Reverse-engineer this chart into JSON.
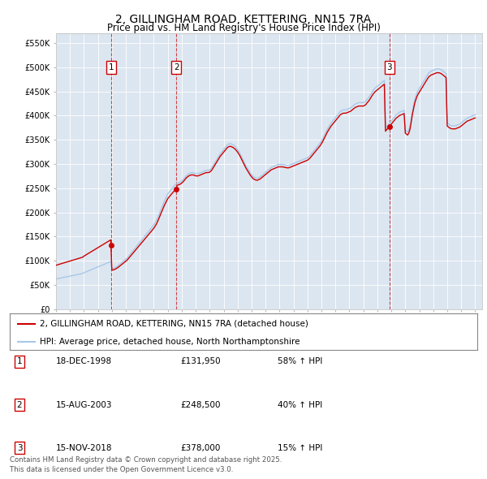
{
  "title": "2, GILLINGHAM ROAD, KETTERING, NN15 7RA",
  "subtitle": "Price paid vs. HM Land Registry's House Price Index (HPI)",
  "title_fontsize": 10,
  "subtitle_fontsize": 8.5,
  "background_color": "#ffffff",
  "plot_bg_color": "#dce6f0",
  "grid_color": "#ffffff",
  "ylim": [
    0,
    570000
  ],
  "yticks": [
    0,
    50000,
    100000,
    150000,
    200000,
    250000,
    300000,
    350000,
    400000,
    450000,
    500000,
    550000
  ],
  "ytick_labels": [
    "£0",
    "£50K",
    "£100K",
    "£150K",
    "£200K",
    "£250K",
    "£300K",
    "£350K",
    "£400K",
    "£450K",
    "£500K",
    "£550K"
  ],
  "xlim_start": 1995.0,
  "xlim_end": 2025.5,
  "sale_color": "#cc0000",
  "hpi_color": "#a8c8e8",
  "vline_color": "#cc0000",
  "sale_dates_year": [
    1998.96,
    2003.62,
    2018.87
  ],
  "sale_prices": [
    131950,
    248500,
    378000
  ],
  "sale_labels": [
    "1",
    "2",
    "3"
  ],
  "legend_line1": "2, GILLINGHAM ROAD, KETTERING, NN15 7RA (detached house)",
  "legend_line2": "HPI: Average price, detached house, North Northamptonshire",
  "table_entries": [
    {
      "num": "1",
      "date": "18-DEC-1998",
      "price": "£131,950",
      "change": "58% ↑ HPI"
    },
    {
      "num": "2",
      "date": "15-AUG-2003",
      "price": "£248,500",
      "change": "40% ↑ HPI"
    },
    {
      "num": "3",
      "date": "15-NOV-2018",
      "price": "£378,000",
      "change": "15% ↑ HPI"
    }
  ],
  "footnote": "Contains HM Land Registry data © Crown copyright and database right 2025.\nThis data is licensed under the Open Government Licence v3.0.",
  "hpi_x": [
    1995.0,
    1995.083,
    1995.167,
    1995.25,
    1995.333,
    1995.417,
    1995.5,
    1995.583,
    1995.667,
    1995.75,
    1995.833,
    1995.917,
    1996.0,
    1996.083,
    1996.167,
    1996.25,
    1996.333,
    1996.417,
    1996.5,
    1996.583,
    1996.667,
    1996.75,
    1996.833,
    1996.917,
    1997.0,
    1997.083,
    1997.167,
    1997.25,
    1997.333,
    1997.417,
    1997.5,
    1997.583,
    1997.667,
    1997.75,
    1997.833,
    1997.917,
    1998.0,
    1998.083,
    1998.167,
    1998.25,
    1998.333,
    1998.417,
    1998.5,
    1998.583,
    1998.667,
    1998.75,
    1998.833,
    1998.917,
    1999.0,
    1999.083,
    1999.167,
    1999.25,
    1999.333,
    1999.417,
    1999.5,
    1999.583,
    1999.667,
    1999.75,
    1999.833,
    1999.917,
    2000.0,
    2000.083,
    2000.167,
    2000.25,
    2000.333,
    2000.417,
    2000.5,
    2000.583,
    2000.667,
    2000.75,
    2000.833,
    2000.917,
    2001.0,
    2001.083,
    2001.167,
    2001.25,
    2001.333,
    2001.417,
    2001.5,
    2001.583,
    2001.667,
    2001.75,
    2001.833,
    2001.917,
    2002.0,
    2002.083,
    2002.167,
    2002.25,
    2002.333,
    2002.417,
    2002.5,
    2002.583,
    2002.667,
    2002.75,
    2002.833,
    2002.917,
    2003.0,
    2003.083,
    2003.167,
    2003.25,
    2003.333,
    2003.417,
    2003.5,
    2003.583,
    2003.667,
    2003.75,
    2003.833,
    2003.917,
    2004.0,
    2004.083,
    2004.167,
    2004.25,
    2004.333,
    2004.417,
    2004.5,
    2004.583,
    2004.667,
    2004.75,
    2004.833,
    2004.917,
    2005.0,
    2005.083,
    2005.167,
    2005.25,
    2005.333,
    2005.417,
    2005.5,
    2005.583,
    2005.667,
    2005.75,
    2005.833,
    2005.917,
    2006.0,
    2006.083,
    2006.167,
    2006.25,
    2006.333,
    2006.417,
    2006.5,
    2006.583,
    2006.667,
    2006.75,
    2006.833,
    2006.917,
    2007.0,
    2007.083,
    2007.167,
    2007.25,
    2007.333,
    2007.417,
    2007.5,
    2007.583,
    2007.667,
    2007.75,
    2007.833,
    2007.917,
    2008.0,
    2008.083,
    2008.167,
    2008.25,
    2008.333,
    2008.417,
    2008.5,
    2008.583,
    2008.667,
    2008.75,
    2008.833,
    2008.917,
    2009.0,
    2009.083,
    2009.167,
    2009.25,
    2009.333,
    2009.417,
    2009.5,
    2009.583,
    2009.667,
    2009.75,
    2009.833,
    2009.917,
    2010.0,
    2010.083,
    2010.167,
    2010.25,
    2010.333,
    2010.417,
    2010.5,
    2010.583,
    2010.667,
    2010.75,
    2010.833,
    2010.917,
    2011.0,
    2011.083,
    2011.167,
    2011.25,
    2011.333,
    2011.417,
    2011.5,
    2011.583,
    2011.667,
    2011.75,
    2011.833,
    2011.917,
    2012.0,
    2012.083,
    2012.167,
    2012.25,
    2012.333,
    2012.417,
    2012.5,
    2012.583,
    2012.667,
    2012.75,
    2012.833,
    2012.917,
    2013.0,
    2013.083,
    2013.167,
    2013.25,
    2013.333,
    2013.417,
    2013.5,
    2013.583,
    2013.667,
    2013.75,
    2013.833,
    2013.917,
    2014.0,
    2014.083,
    2014.167,
    2014.25,
    2014.333,
    2014.417,
    2014.5,
    2014.583,
    2014.667,
    2014.75,
    2014.833,
    2014.917,
    2015.0,
    2015.083,
    2015.167,
    2015.25,
    2015.333,
    2015.417,
    2015.5,
    2015.583,
    2015.667,
    2015.75,
    2015.833,
    2015.917,
    2016.0,
    2016.083,
    2016.167,
    2016.25,
    2016.333,
    2016.417,
    2016.5,
    2016.583,
    2016.667,
    2016.75,
    2016.833,
    2016.917,
    2017.0,
    2017.083,
    2017.167,
    2017.25,
    2017.333,
    2017.417,
    2017.5,
    2017.583,
    2017.667,
    2017.75,
    2017.833,
    2017.917,
    2018.0,
    2018.083,
    2018.167,
    2018.25,
    2018.333,
    2018.417,
    2018.5,
    2018.583,
    2018.667,
    2018.75,
    2018.833,
    2018.917,
    2019.0,
    2019.083,
    2019.167,
    2019.25,
    2019.333,
    2019.417,
    2019.5,
    2019.583,
    2019.667,
    2019.75,
    2019.833,
    2019.917,
    2020.0,
    2020.083,
    2020.167,
    2020.25,
    2020.333,
    2020.417,
    2020.5,
    2020.583,
    2020.667,
    2020.75,
    2020.833,
    2020.917,
    2021.0,
    2021.083,
    2021.167,
    2021.25,
    2021.333,
    2021.417,
    2021.5,
    2021.583,
    2021.667,
    2021.75,
    2021.833,
    2021.917,
    2022.0,
    2022.083,
    2022.167,
    2022.25,
    2022.333,
    2022.417,
    2022.5,
    2022.583,
    2022.667,
    2022.75,
    2022.833,
    2022.917,
    2023.0,
    2023.083,
    2023.167,
    2023.25,
    2023.333,
    2023.417,
    2023.5,
    2023.583,
    2023.667,
    2023.75,
    2023.833,
    2023.917,
    2024.0,
    2024.083,
    2024.167,
    2024.25,
    2024.333,
    2024.417,
    2024.5,
    2024.583,
    2024.667,
    2024.75,
    2024.833,
    2024.917,
    2025.0
  ],
  "hpi_y": [
    62000,
    62500,
    63000,
    63500,
    64000,
    64500,
    65000,
    65500,
    66000,
    66500,
    67000,
    67500,
    68000,
    68500,
    69000,
    69500,
    70000,
    70500,
    71000,
    71500,
    72000,
    72500,
    73000,
    73500,
    75000,
    76000,
    77000,
    78000,
    79000,
    80000,
    81000,
    82000,
    83000,
    84000,
    85000,
    86000,
    87000,
    88000,
    89000,
    90000,
    91000,
    92000,
    93000,
    94000,
    95000,
    96000,
    97000,
    98000,
    83500,
    84000,
    85000,
    86000,
    87500,
    89000,
    91000,
    93000,
    95000,
    97000,
    99000,
    101000,
    103000,
    105000,
    108000,
    111000,
    114000,
    117000,
    120000,
    123000,
    126000,
    129000,
    132000,
    135000,
    138000,
    141000,
    144000,
    147000,
    150000,
    153000,
    156000,
    159000,
    162000,
    165000,
    168000,
    171000,
    174000,
    178000,
    182000,
    187000,
    193000,
    199000,
    205000,
    211000,
    217000,
    223000,
    228000,
    233000,
    238000,
    241000,
    244000,
    247000,
    250000,
    253000,
    256000,
    258000,
    260000,
    261000,
    262000,
    263000,
    265000,
    267000,
    270000,
    273000,
    276000,
    278000,
    280000,
    281000,
    282000,
    282000,
    282000,
    281000,
    280000,
    280000,
    280000,
    281000,
    282000,
    283000,
    284000,
    285000,
    286000,
    287000,
    287000,
    287000,
    288000,
    290000,
    293000,
    297000,
    301000,
    305000,
    309000,
    313000,
    317000,
    321000,
    324000,
    327000,
    330000,
    333000,
    336000,
    339000,
    341000,
    342000,
    342000,
    341000,
    340000,
    338000,
    336000,
    333000,
    330000,
    326000,
    322000,
    317000,
    312000,
    307000,
    302000,
    297000,
    293000,
    289000,
    285000,
    281000,
    278000,
    275000,
    273000,
    272000,
    271000,
    271000,
    272000,
    273000,
    275000,
    277000,
    279000,
    281000,
    283000,
    285000,
    287000,
    289000,
    291000,
    293000,
    294000,
    295000,
    296000,
    297000,
    298000,
    299000,
    299000,
    299000,
    299000,
    299000,
    298000,
    298000,
    297000,
    297000,
    297000,
    298000,
    299000,
    300000,
    301000,
    302000,
    303000,
    304000,
    305000,
    306000,
    307000,
    308000,
    309000,
    310000,
    311000,
    312000,
    313000,
    315000,
    317000,
    320000,
    323000,
    326000,
    329000,
    332000,
    335000,
    338000,
    341000,
    344000,
    348000,
    352000,
    357000,
    362000,
    367000,
    372000,
    376000,
    380000,
    384000,
    387000,
    390000,
    393000,
    396000,
    399000,
    402000,
    405000,
    408000,
    410000,
    411000,
    412000,
    412000,
    412000,
    413000,
    414000,
    415000,
    416000,
    418000,
    420000,
    422000,
    424000,
    425000,
    426000,
    427000,
    427000,
    427000,
    427000,
    427000,
    428000,
    430000,
    433000,
    436000,
    439000,
    443000,
    447000,
    451000,
    454000,
    457000,
    459000,
    461000,
    463000,
    465000,
    467000,
    469000,
    471000,
    473000,
    374000,
    377000,
    380000,
    383000,
    386000,
    389000,
    392000,
    395000,
    398000,
    401000,
    403000,
    405000,
    407000,
    408000,
    409000,
    410000,
    411000,
    370000,
    368000,
    366000,
    370000,
    378000,
    392000,
    408000,
    420000,
    432000,
    440000,
    447000,
    452000,
    456000,
    460000,
    464000,
    468000,
    472000,
    476000,
    480000,
    484000,
    488000,
    490000,
    492000,
    493000,
    494000,
    495000,
    496000,
    497000,
    497000,
    497000,
    496000,
    495000,
    493000,
    491000,
    489000,
    487000,
    385000,
    383000,
    381000,
    380000,
    379000,
    379000,
    379000,
    379000,
    380000,
    381000,
    382000,
    383000,
    385000,
    387000,
    389000,
    391000,
    393000,
    395000,
    396000,
    397000,
    398000,
    399000,
    400000,
    401000,
    402000
  ]
}
